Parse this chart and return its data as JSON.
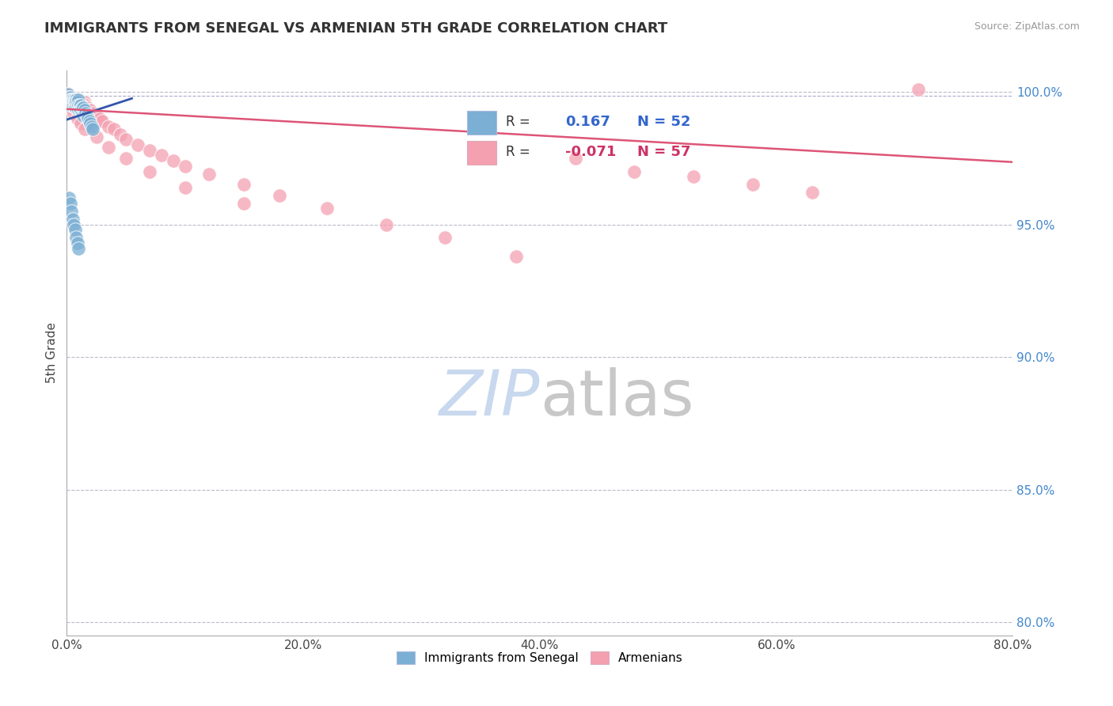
{
  "title": "IMMIGRANTS FROM SENEGAL VS ARMENIAN 5TH GRADE CORRELATION CHART",
  "source": "Source: ZipAtlas.com",
  "ylabel": "5th Grade",
  "xmin": 0.0,
  "xmax": 0.8,
  "ymin": 0.795,
  "ymax": 1.008,
  "xticks": [
    0.0,
    0.2,
    0.4,
    0.6,
    0.8
  ],
  "xtick_labels": [
    "0.0%",
    "20.0%",
    "40.0%",
    "60.0%",
    "80.0%"
  ],
  "yticks": [
    0.8,
    0.85,
    0.9,
    0.95,
    1.0
  ],
  "ytick_labels": [
    "80.0%",
    "85.0%",
    "90.0%",
    "95.0%",
    "100.0%"
  ],
  "blue_R": 0.167,
  "blue_N": 52,
  "pink_R": -0.071,
  "pink_N": 57,
  "blue_color": "#7bafd4",
  "pink_color": "#f4a0b0",
  "blue_line_color": "#3355aa",
  "pink_line_color": "#dd5577",
  "grid_color": "#cccccc",
  "legend_label_blue": "Immigrants from Senegal",
  "legend_label_pink": "Armenians",
  "blue_scatter_x": [
    0.001,
    0.002,
    0.002,
    0.003,
    0.003,
    0.003,
    0.004,
    0.004,
    0.004,
    0.005,
    0.005,
    0.005,
    0.006,
    0.006,
    0.006,
    0.007,
    0.007,
    0.007,
    0.007,
    0.008,
    0.008,
    0.008,
    0.009,
    0.009,
    0.01,
    0.01,
    0.01,
    0.011,
    0.011,
    0.012,
    0.012,
    0.013,
    0.013,
    0.014,
    0.014,
    0.015,
    0.016,
    0.017,
    0.018,
    0.019,
    0.02,
    0.021,
    0.022,
    0.002,
    0.003,
    0.004,
    0.005,
    0.006,
    0.007,
    0.008,
    0.009,
    0.01
  ],
  "blue_scatter_y": [
    0.999,
    0.998,
    0.997,
    0.998,
    0.997,
    0.996,
    0.997,
    0.996,
    0.995,
    0.997,
    0.996,
    0.995,
    0.997,
    0.996,
    0.995,
    0.997,
    0.996,
    0.995,
    0.994,
    0.997,
    0.996,
    0.994,
    0.996,
    0.994,
    0.997,
    0.995,
    0.993,
    0.995,
    0.993,
    0.995,
    0.993,
    0.994,
    0.992,
    0.994,
    0.991,
    0.993,
    0.992,
    0.991,
    0.99,
    0.989,
    0.988,
    0.987,
    0.986,
    0.96,
    0.958,
    0.955,
    0.952,
    0.95,
    0.948,
    0.945,
    0.943,
    0.941
  ],
  "pink_scatter_x": [
    0.001,
    0.002,
    0.003,
    0.004,
    0.005,
    0.005,
    0.006,
    0.007,
    0.008,
    0.009,
    0.01,
    0.011,
    0.012,
    0.013,
    0.014,
    0.015,
    0.016,
    0.017,
    0.018,
    0.02,
    0.022,
    0.025,
    0.028,
    0.03,
    0.035,
    0.04,
    0.045,
    0.05,
    0.06,
    0.07,
    0.08,
    0.09,
    0.1,
    0.12,
    0.15,
    0.18,
    0.22,
    0.27,
    0.32,
    0.38,
    0.43,
    0.48,
    0.53,
    0.58,
    0.63,
    0.003,
    0.006,
    0.009,
    0.012,
    0.015,
    0.025,
    0.035,
    0.05,
    0.07,
    0.1,
    0.15,
    0.72
  ],
  "pink_scatter_y": [
    0.999,
    0.998,
    0.998,
    0.997,
    0.998,
    0.997,
    0.997,
    0.996,
    0.997,
    0.996,
    0.997,
    0.996,
    0.996,
    0.995,
    0.995,
    0.996,
    0.995,
    0.994,
    0.993,
    0.993,
    0.992,
    0.991,
    0.99,
    0.989,
    0.987,
    0.986,
    0.984,
    0.982,
    0.98,
    0.978,
    0.976,
    0.974,
    0.972,
    0.969,
    0.965,
    0.961,
    0.956,
    0.95,
    0.945,
    0.938,
    0.975,
    0.97,
    0.968,
    0.965,
    0.962,
    0.994,
    0.992,
    0.99,
    0.988,
    0.986,
    0.983,
    0.979,
    0.975,
    0.97,
    0.964,
    0.958,
    1.001
  ],
  "blue_line_x0": 0.0,
  "blue_line_x1": 0.055,
  "blue_line_y0": 0.9895,
  "blue_line_y1": 0.9975,
  "pink_line_x0": 0.0,
  "pink_line_x1": 0.8,
  "pink_line_y0": 0.9935,
  "pink_line_y1": 0.9735,
  "dashed_line_y": 0.9985,
  "watermark_zip_color": "#c8d8ee",
  "watermark_atlas_color": "#c8c8c8"
}
